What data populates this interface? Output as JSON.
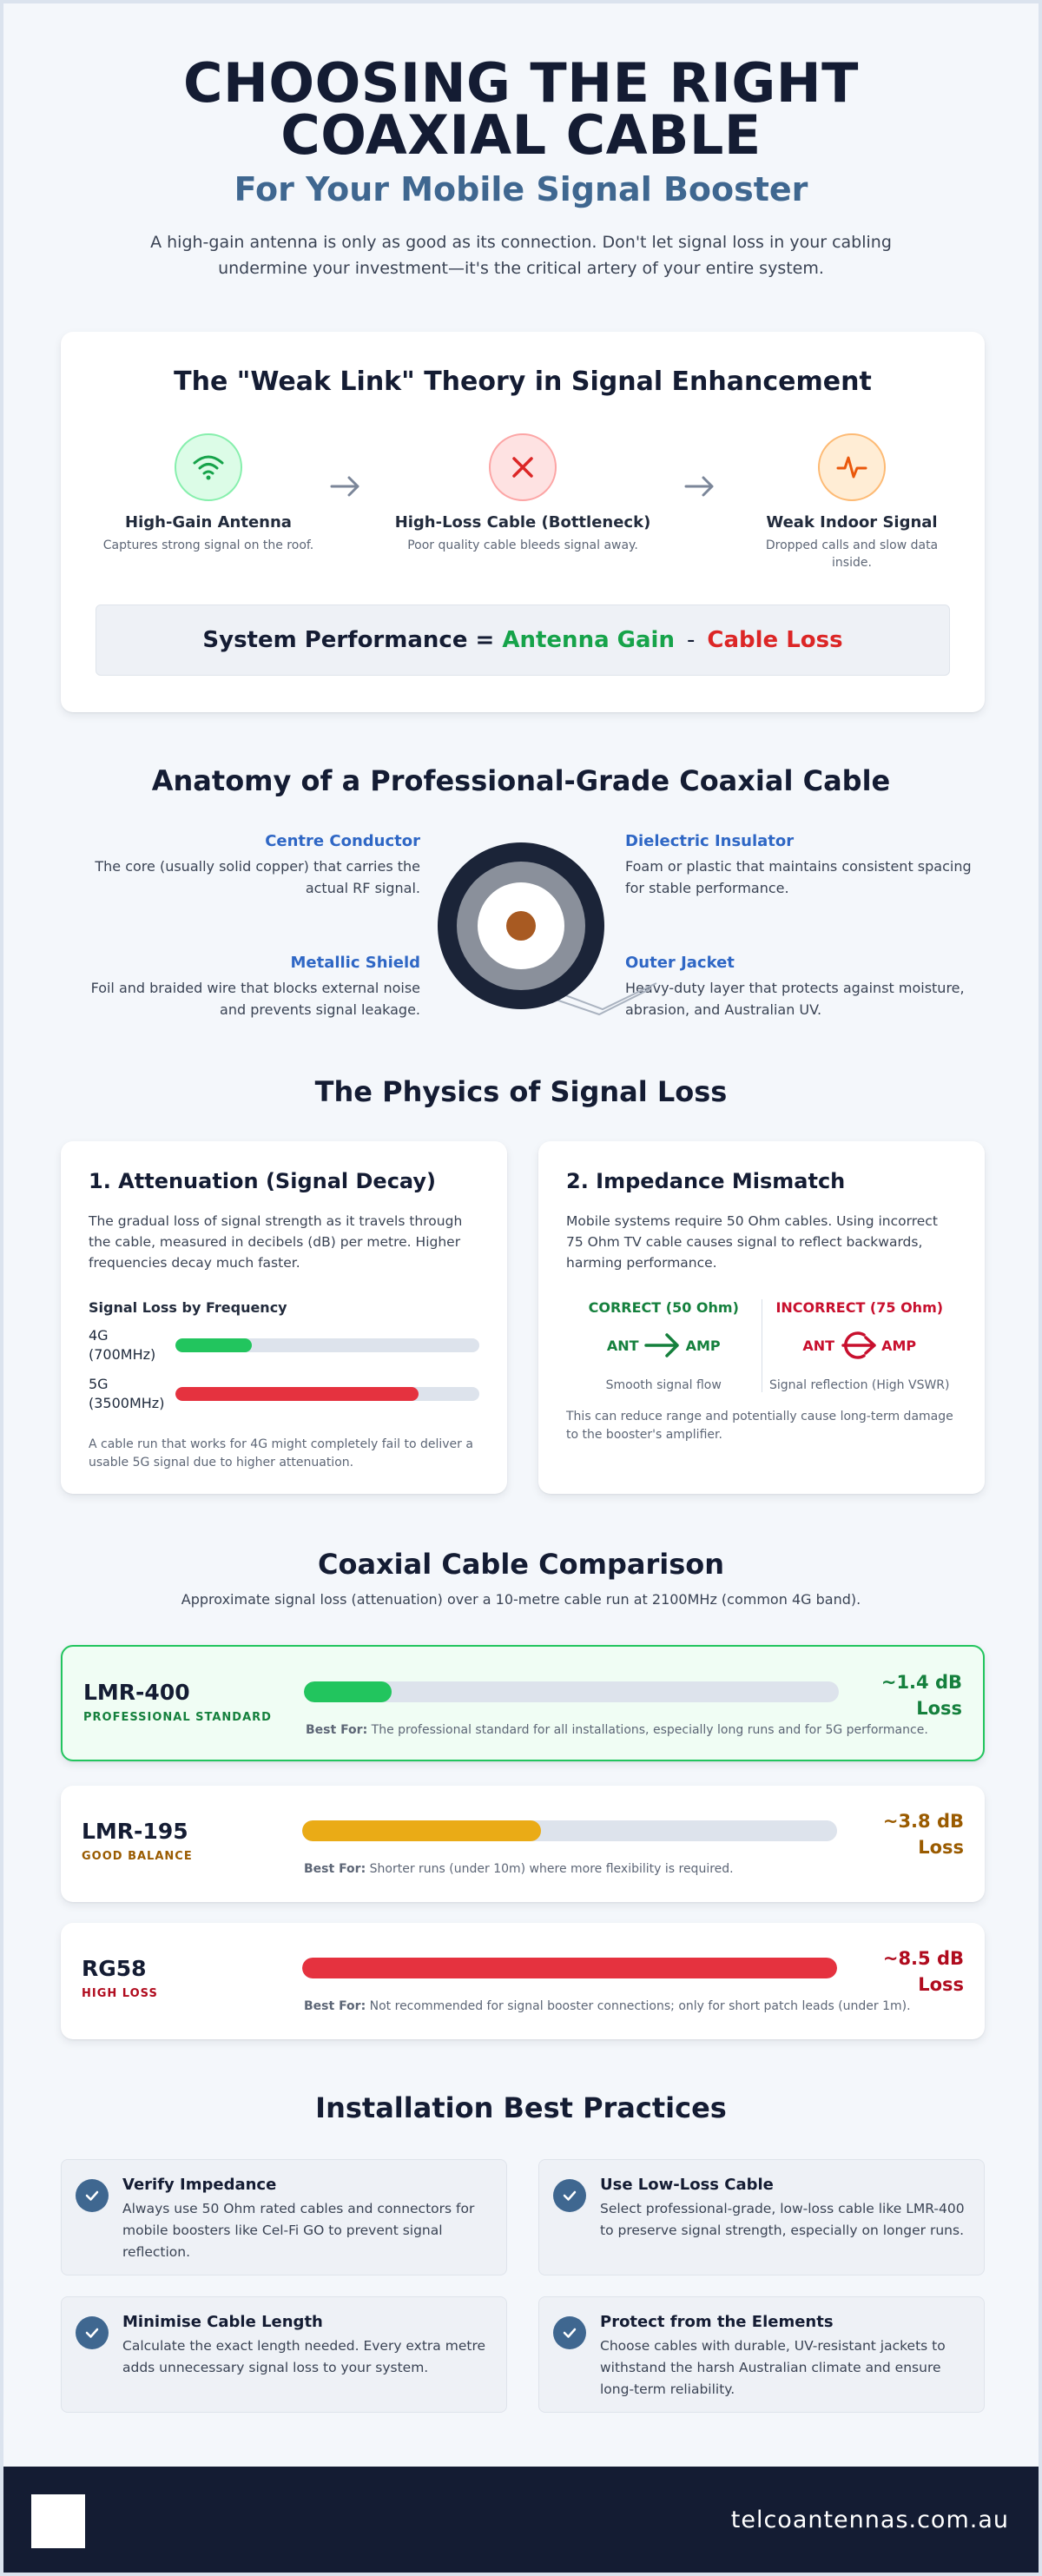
{
  "hero": {
    "title": "CHOOSING THE RIGHT COAXIAL CABLE",
    "subtitle": "For Your Mobile Signal Booster",
    "intro": "A high-gain antenna is only as good as its connection. Don't let signal loss in your cabling undermine your investment—it's the critical artery of your entire system."
  },
  "weak_link": {
    "title": "The \"Weak Link\" Theory in Signal Enhancement",
    "items": [
      {
        "title": "High-Gain Antenna",
        "desc": "Captures strong signal on the roof.",
        "icon": "wifi-icon"
      },
      {
        "title": "High-Loss Cable (Bottleneck)",
        "desc": "Poor quality cable bleeds signal away.",
        "icon": "x-icon"
      },
      {
        "title": "Weak Indoor Signal",
        "desc": "Dropped calls and slow data inside.",
        "icon": "pulse-icon"
      }
    ],
    "formula": {
      "label": "System Performance =",
      "gain": "Antenna Gain",
      "minus": "-",
      "loss": "Cable Loss"
    }
  },
  "anatomy": {
    "title": "Anatomy of a Professional-Grade Coaxial Cable",
    "parts": [
      {
        "title": "Centre Conductor",
        "desc": "The core (usually solid copper) that carries the actual RF signal."
      },
      {
        "title": "Dielectric Insulator",
        "desc": "Foam or plastic that maintains consistent spacing for stable performance."
      },
      {
        "title": "Metallic Shield",
        "desc": "Foil and braided wire that blocks external noise and prevents signal leakage."
      },
      {
        "title": "Outer Jacket",
        "desc": "Heavy-duty layer that protects against moisture, abrasion, and Australian UV."
      }
    ]
  },
  "physics": {
    "title": "The Physics of Signal Loss",
    "attenuation": {
      "title": "1. Attenuation (Signal Decay)",
      "body": "The gradual loss of signal strength as it travels through the cable, measured in decibels (dB) per metre. Higher frequencies decay much faster.",
      "freq_title": "Signal Loss by Frequency",
      "bars": [
        {
          "label": "4G (700MHz)",
          "fraction": 0.25,
          "color": "#22c55e"
        },
        {
          "label": "5G (3500MHz)",
          "fraction": 0.8,
          "color": "#e5323f"
        }
      ],
      "note": "A cable run that works for 4G might completely fail to deliver a usable 5G signal due to higher attenuation."
    },
    "impedance": {
      "title": "2. Impedance Mismatch",
      "body": "Mobile systems require 50 Ohm cables. Using incorrect 75 Ohm TV cable causes signal to reflect backwards, harming performance.",
      "correct": {
        "head": "CORRECT (50 Ohm)",
        "ant": "ANT",
        "amp": "AMP",
        "caption": "Smooth signal flow",
        "color": "#15803d"
      },
      "incorrect": {
        "head": "INCORRECT (75 Ohm)",
        "ant": "ANT",
        "amp": "AMP",
        "caption": "Signal reflection (High VSWR)",
        "color": "#c8102e"
      },
      "note": "This can reduce range and potentially cause long-term damage to the booster's amplifier."
    }
  },
  "comparison": {
    "title": "Coaxial Cable Comparison",
    "subtitle": "Approximate signal loss (attenuation) over a 10-metre cable run at 2100MHz (common 4G band).",
    "best_for_label": "Best For:",
    "cables": [
      {
        "name": "LMR-400",
        "tag": "PROFESSIONAL STANDARD",
        "tag_color": "#15803d",
        "loss": "~1.4 dB Loss",
        "loss_color": "#15803d",
        "bar_color": "#22c55e",
        "loss_db": 1.4,
        "best_for": "The professional standard for all installations, especially long runs and for 5G performance."
      },
      {
        "name": "LMR-195",
        "tag": "GOOD BALANCE",
        "tag_color": "#9a5b00",
        "loss": "~3.8 dB Loss",
        "loss_color": "#9a5b00",
        "bar_color": "#eaab16",
        "loss_db": 3.8,
        "best_for": "Shorter runs (under 10m) where more flexibility is required."
      },
      {
        "name": "RG58",
        "tag": "HIGH LOSS",
        "tag_color": "#b00b1e",
        "loss": "~8.5 dB Loss",
        "loss_color": "#b00b1e",
        "bar_color": "#e5323f",
        "loss_db": 8.5,
        "best_for": "Not recommended for signal booster connections; only for short patch leads (under 1m)."
      }
    ]
  },
  "practices": {
    "title": "Installation Best Practices",
    "items": [
      {
        "title": "Verify Impedance",
        "desc": "Always use 50 Ohm rated cables and connectors for mobile boosters like Cel-Fi GO to prevent signal reflection."
      },
      {
        "title": "Use Low-Loss Cable",
        "desc": "Select professional-grade, low-loss cable like LMR-400 to preserve signal strength, especially on longer runs."
      },
      {
        "title": "Minimise Cable Length",
        "desc": "Calculate the exact length needed. Every extra metre adds unnecessary signal loss to your system."
      },
      {
        "title": "Protect from the Elements",
        "desc": "Choose cables with durable, UV-resistant jackets to withstand the harsh Australian climate and ensure long-term reliability."
      }
    ]
  },
  "footer": {
    "url": "telcoantennas.com.au"
  }
}
